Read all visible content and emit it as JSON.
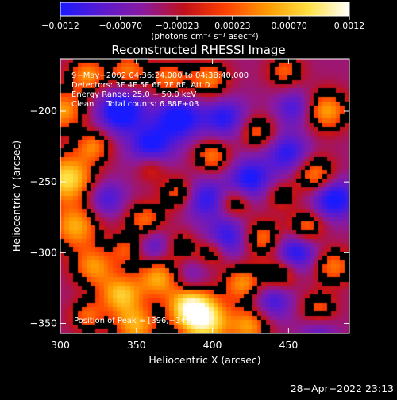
{
  "chart_data": {
    "type": "heatmap",
    "title": "Reconstructed RHESSI Image",
    "xlabel": "Heliocentric X (arcsec)",
    "ylabel": "Heliocentric Y (arcsec)",
    "xlim": [
      300,
      490
    ],
    "ylim": [
      -357,
      -163
    ],
    "x_ticks": [
      300,
      350,
      400,
      450
    ],
    "y_ticks": [
      -200,
      -250,
      -300,
      -350
    ],
    "x_tick_labels": [
      "300",
      "350",
      "400",
      "450"
    ],
    "y_tick_labels": [
      "−200",
      "−250",
      "−300",
      "−350"
    ],
    "colorbar": {
      "range": [
        -0.0012,
        0.0012
      ],
      "tick_values": [
        -0.0012,
        -0.0007,
        -0.00023,
        0.00023,
        0.0007,
        0.0012
      ],
      "tick_labels": [
        "−0.0012",
        "−0.00070",
        "−0.00023",
        "0.00023",
        "0.00070",
        "0.0012"
      ],
      "units": "(photons cm⁻² s⁻¹ asec⁻²)",
      "colors": [
        "#1a1aff",
        "#5a1ad0",
        "#8a1aa0",
        "#c0101a",
        "#ff4000",
        "#ff9a00",
        "#ffe040",
        "#ffffff"
      ]
    },
    "annotations": [
      "9−May−2002 04:36:24.000 to 04:38:40.000",
      "Detectors: 3F 4F 5F 6F 7F 8F, Att 0",
      "Energy Range: 25.0 − 50.0 keV",
      "Clean     Total counts: 6.88E+03",
      "Position of Peak = [396,−349]"
    ],
    "blobs": [
      {
        "x": 305,
        "y": -248,
        "v": 0.0012,
        "r": 12
      },
      {
        "x": 302,
        "y": -200,
        "v": 0.00085,
        "r": 10
      },
      {
        "x": 318,
        "y": -175,
        "v": 0.0008,
        "r": 9
      },
      {
        "x": 345,
        "y": -172,
        "v": 0.0007,
        "r": 9
      },
      {
        "x": 372,
        "y": -178,
        "v": 0.0007,
        "r": 9
      },
      {
        "x": 398,
        "y": -178,
        "v": 0.00075,
        "r": 9
      },
      {
        "x": 448,
        "y": -172,
        "v": 0.0006,
        "r": 8
      },
      {
        "x": 475,
        "y": -200,
        "v": 0.0009,
        "r": 10
      },
      {
        "x": 468,
        "y": -245,
        "v": 0.0008,
        "r": 9
      },
      {
        "x": 430,
        "y": -215,
        "v": 0.0006,
        "r": 8
      },
      {
        "x": 400,
        "y": -232,
        "v": 0.0007,
        "r": 8
      },
      {
        "x": 378,
        "y": -258,
        "v": 0.0006,
        "r": 8
      },
      {
        "x": 356,
        "y": -278,
        "v": 0.0007,
        "r": 9
      },
      {
        "x": 322,
        "y": -225,
        "v": 0.0007,
        "r": 8
      },
      {
        "x": 310,
        "y": -282,
        "v": 0.0009,
        "r": 11
      },
      {
        "x": 322,
        "y": -310,
        "v": 0.0008,
        "r": 10
      },
      {
        "x": 345,
        "y": -298,
        "v": 0.0006,
        "r": 8
      },
      {
        "x": 340,
        "y": -330,
        "v": 0.001,
        "r": 10
      },
      {
        "x": 365,
        "y": -318,
        "v": 0.0009,
        "r": 10
      },
      {
        "x": 385,
        "y": -338,
        "v": 0.0011,
        "r": 10
      },
      {
        "x": 396,
        "y": -349,
        "v": 0.0012,
        "r": 12
      },
      {
        "x": 420,
        "y": -322,
        "v": 0.0008,
        "r": 9
      },
      {
        "x": 445,
        "y": -315,
        "v": 0.0006,
        "r": 8
      },
      {
        "x": 433,
        "y": -290,
        "v": 0.0007,
        "r": 9
      },
      {
        "x": 462,
        "y": -282,
        "v": 0.0007,
        "r": 8
      },
      {
        "x": 480,
        "y": -310,
        "v": 0.0007,
        "r": 9
      },
      {
        "x": 470,
        "y": -340,
        "v": 0.0006,
        "r": 8
      },
      {
        "x": 425,
        "y": -352,
        "v": 0.0008,
        "r": 9
      },
      {
        "x": 350,
        "y": -352,
        "v": 0.0009,
        "r": 10
      },
      {
        "x": 318,
        "y": -345,
        "v": 0.0006,
        "r": 8
      },
      {
        "x": 380,
        "y": -295,
        "v": 0.0004,
        "r": 7
      },
      {
        "x": 360,
        "y": -240,
        "v": 0.0004,
        "r": 7
      },
      {
        "x": 415,
        "y": -265,
        "v": 0.0005,
        "r": 7
      },
      {
        "x": 445,
        "y": -260,
        "v": 0.0004,
        "r": 7
      },
      {
        "x": 400,
        "y": -300,
        "v": 0.0005,
        "r": 7
      },
      {
        "x": 340,
        "y": -200,
        "v": -0.0011,
        "r": 11
      },
      {
        "x": 378,
        "y": -205,
        "v": -0.001,
        "r": 11
      },
      {
        "x": 360,
        "y": -225,
        "v": -0.0009,
        "r": 10
      },
      {
        "x": 408,
        "y": -205,
        "v": -0.0008,
        "r": 10
      },
      {
        "x": 425,
        "y": -248,
        "v": -0.0009,
        "r": 10
      },
      {
        "x": 450,
        "y": -230,
        "v": -0.0008,
        "r": 10
      },
      {
        "x": 480,
        "y": -262,
        "v": -0.001,
        "r": 10
      },
      {
        "x": 455,
        "y": -198,
        "v": -0.0007,
        "r": 9
      },
      {
        "x": 395,
        "y": -262,
        "v": -0.0008,
        "r": 10
      },
      {
        "x": 410,
        "y": -290,
        "v": -0.0008,
        "r": 10
      },
      {
        "x": 455,
        "y": -300,
        "v": -0.0009,
        "r": 10
      },
      {
        "x": 440,
        "y": -335,
        "v": -0.0007,
        "r": 9
      },
      {
        "x": 330,
        "y": -262,
        "v": -0.0007,
        "r": 9
      },
      {
        "x": 360,
        "y": -295,
        "v": -0.0007,
        "r": 9
      },
      {
        "x": 385,
        "y": -318,
        "v": -0.0005,
        "r": 8
      },
      {
        "x": 470,
        "y": -355,
        "v": -0.0005,
        "r": 8
      }
    ]
  },
  "footer": {
    "timestamp": "28−Apr−2022 23:13"
  }
}
